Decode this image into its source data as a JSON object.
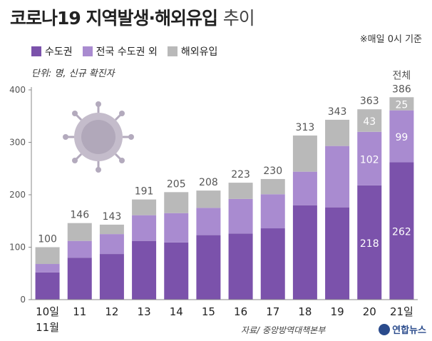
{
  "title": {
    "main": "코로나19 지역발생·해외유입",
    "sub": "추이"
  },
  "note": "※매일 0시 기준",
  "unit_label": "단위: 명, 신규 확진자",
  "source": "자료/ 중앙방역대책본부",
  "logo": "연합뉴스",
  "total_label": "전체",
  "colors": {
    "capital": "#7b52ab",
    "non_capital": "#a98bd0",
    "overseas": "#b9b9b9",
    "axis": "#888888"
  },
  "chart_data": {
    "type": "bar",
    "stacked": true,
    "categories": [
      "10일",
      "11",
      "12",
      "13",
      "14",
      "15",
      "16",
      "17",
      "18",
      "19",
      "20",
      "21일"
    ],
    "category_sublabels": [
      "11월",
      "",
      "",
      "",
      "",
      "",
      "",
      "",
      "",
      "",
      "",
      ""
    ],
    "series": [
      {
        "name": "수도권",
        "values": [
          52,
          80,
          87,
          112,
          109,
          123,
          126,
          136,
          180,
          176,
          218,
          262
        ]
      },
      {
        "name": "전국 수도권 외",
        "values": [
          16,
          32,
          38,
          49,
          56,
          52,
          66,
          65,
          64,
          117,
          102,
          99
        ]
      },
      {
        "name": "해외유입",
        "values": [
          32,
          34,
          18,
          30,
          40,
          33,
          31,
          29,
          69,
          50,
          43,
          25
        ]
      }
    ],
    "totals": [
      100,
      146,
      143,
      191,
      205,
      208,
      223,
      230,
      313,
      343,
      363,
      386
    ],
    "segment_labels": {
      "capital": [
        "",
        "",
        "",
        "",
        "",
        "",
        "",
        "",
        "",
        "",
        "218",
        "262"
      ],
      "non_capital": [
        "",
        "",
        "",
        "",
        "",
        "",
        "",
        "",
        "",
        "",
        "102",
        "99"
      ],
      "overseas": [
        "",
        "",
        "",
        "",
        "",
        "",
        "",
        "",
        "",
        "",
        "43",
        "25"
      ]
    },
    "ylim": [
      0,
      400
    ],
    "yticks": [
      0,
      100,
      200,
      300,
      400
    ],
    "grid": false,
    "legend": "top-left"
  }
}
